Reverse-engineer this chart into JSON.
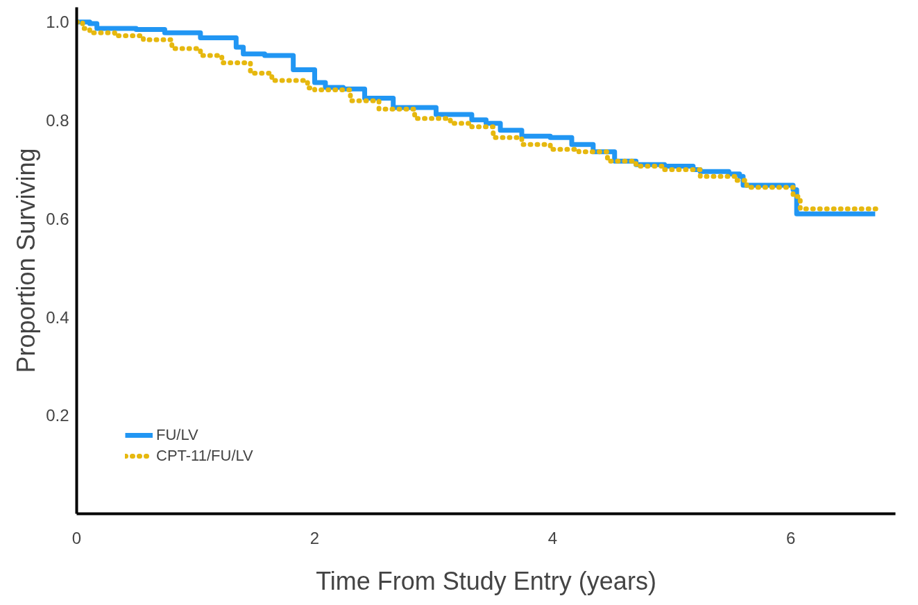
{
  "chart_data": {
    "type": "step",
    "xlabel": "Time From Study Entry (years)",
    "ylabel": "Proportion Surviving",
    "xlim": [
      0,
      6.88
    ],
    "ylim": [
      0,
      1.03
    ],
    "xticks": [
      0,
      2,
      4,
      6
    ],
    "yticks": [
      0.2,
      0.4,
      0.6,
      0.8,
      {
        "value": 1,
        "label": "1.0"
      }
    ],
    "grid": false,
    "legend": "bottom left",
    "series": [
      {
        "name": "FU/LV",
        "color": "#2196f3",
        "line_style": "solid",
        "x": [
          0,
          0.11,
          0.17,
          0.5,
          0.74,
          1.04,
          1.34,
          1.4,
          1.58,
          1.82,
          2.0,
          2.09,
          2.24,
          2.42,
          2.66,
          3.02,
          3.32,
          3.44,
          3.56,
          3.74,
          3.98,
          4.16,
          4.34,
          4.52,
          4.7,
          4.94,
          5.18,
          5.24,
          5.48,
          5.57,
          5.6,
          6.02,
          6.05,
          6.71
        ],
        "values": [
          1.0,
          0.997,
          0.987,
          0.985,
          0.978,
          0.968,
          0.949,
          0.935,
          0.932,
          0.903,
          0.877,
          0.867,
          0.864,
          0.845,
          0.826,
          0.812,
          0.801,
          0.794,
          0.78,
          0.768,
          0.765,
          0.751,
          0.736,
          0.717,
          0.71,
          0.707,
          0.7,
          0.696,
          0.691,
          0.686,
          0.668,
          0.659,
          0.61,
          0.61
        ]
      },
      {
        "name": "CPT-11/FU/LV",
        "color": "#e6b80f",
        "line_style": "dotted",
        "x": [
          0,
          0.05,
          0.11,
          0.32,
          0.56,
          0.8,
          1.04,
          1.22,
          1.46,
          1.64,
          1.94,
          2.0,
          2.3,
          2.54,
          2.84,
          3.14,
          3.32,
          3.5,
          3.74,
          3.98,
          4.22,
          4.46,
          4.7,
          4.94,
          5.24,
          5.54,
          5.63,
          5.99,
          6.02,
          6.08,
          6.73
        ],
        "values": [
          1.0,
          0.987,
          0.978,
          0.972,
          0.964,
          0.946,
          0.932,
          0.917,
          0.896,
          0.881,
          0.866,
          0.862,
          0.84,
          0.823,
          0.804,
          0.794,
          0.787,
          0.765,
          0.751,
          0.741,
          0.736,
          0.717,
          0.707,
          0.7,
          0.686,
          0.678,
          0.664,
          0.664,
          0.645,
          0.62,
          0.62
        ]
      }
    ]
  }
}
